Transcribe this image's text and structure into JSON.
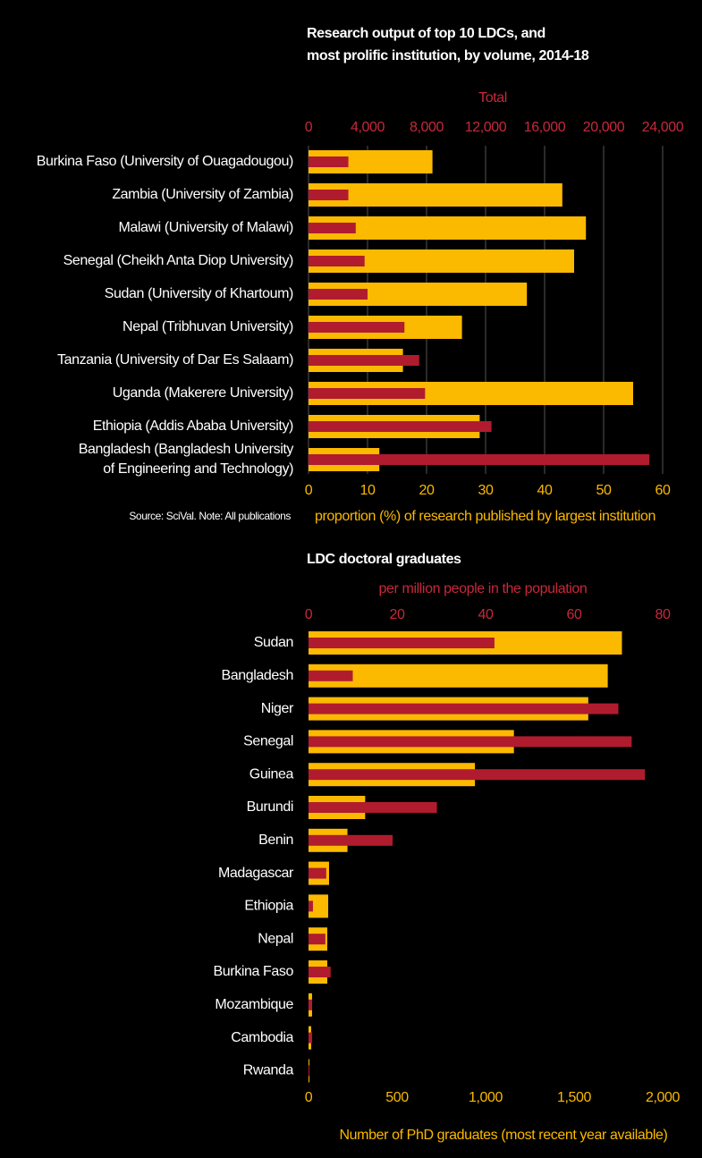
{
  "charts": [
    {
      "chart_data": {
        "type": "bar",
        "orientation": "horizontal",
        "title": "Research output of top 10 LDCs, and\nmost prolific institution, by volume, 2014-18",
        "categories": [
          "Burkina Faso (University of Ouagadougou)",
          "Zambia (University of Zambia)",
          "Malawi (University of Malawi)",
          "Senegal (Cheikh Anta Diop University)",
          "Sudan (University of Khartoum)",
          "Nepal (Tribhuvan University)",
          "Tanzania (University of Dar Es Salaam)",
          "Uganda (Makerere University)",
          "Ethiopia (Addis Ababa University)",
          "Bangladesh (Bangladesh University\nof Engineering and Technology)"
        ],
        "series": [
          {
            "color": "#fbb900",
            "axis": "x",
            "values": [
              21,
              43,
              47,
              45,
              37,
              26,
              16,
              55,
              29,
              12
            ]
          },
          {
            "color": "#b01c2e",
            "axis": "x2",
            "values": [
              2700,
              2700,
              3200,
              3800,
              4000,
              6500,
              7500,
              7900,
              12400,
              23100
            ]
          }
        ],
        "x2label": "Total",
        "x2lim": [
          0,
          24000
        ],
        "x2ticks": [
          0,
          {
            "value": 4000,
            "label": "4,000"
          },
          {
            "value": 8000,
            "label": "8,000"
          },
          {
            "value": 12000,
            "label": "12,000"
          },
          {
            "value": 16000,
            "label": "16,000"
          },
          {
            "value": 20000,
            "label": "20,000"
          },
          {
            "value": 24000,
            "label": "24,000"
          }
        ],
        "xlabel": "proportion (%) of research published by largest institution",
        "xlim": [
          0,
          60
        ],
        "xticks": [
          0,
          10,
          20,
          30,
          40,
          50,
          60
        ],
        "note": "Source: SciVal. Note: All publications",
        "grid": true
      }
    },
    {
      "chart_data": {
        "type": "bar",
        "orientation": "horizontal",
        "title": "LDC doctoral graduates",
        "categories": [
          "Sudan",
          "Bangladesh",
          "Niger",
          "Senegal",
          "Guinea",
          "Burundi",
          "Benin",
          "Madagascar",
          "Ethiopia",
          "Nepal",
          "Burkina Faso",
          "Mozambique",
          "Cambodia",
          "Rwanda"
        ],
        "series": [
          {
            "color": "#fbb900",
            "axis": "x",
            "values": [
              1770,
              1690,
              1580,
              1160,
              940,
              320,
              220,
              116,
              111,
              106,
              106,
              20,
              15,
              5
            ]
          },
          {
            "color": "#b01c2e",
            "axis": "x2",
            "values": [
              42,
              10,
              70,
              73,
              76,
              29,
              19,
              4,
              1,
              3.8,
              5,
              0.8,
              0.8,
              0.2
            ]
          }
        ],
        "x2label": "per million people in the population",
        "x2lim": [
          0,
          80
        ],
        "x2ticks": [
          0,
          20,
          40,
          60,
          80
        ],
        "xlabel": "Number of PhD graduates (most recent year available)",
        "xlim": [
          0,
          2000
        ],
        "xticks": [
          0,
          500,
          {
            "value": 1000,
            "label": "1,000"
          },
          {
            "value": 1500,
            "label": "1,500"
          },
          {
            "value": 2000,
            "label": "2,000"
          }
        ],
        "grid": false
      }
    }
  ]
}
